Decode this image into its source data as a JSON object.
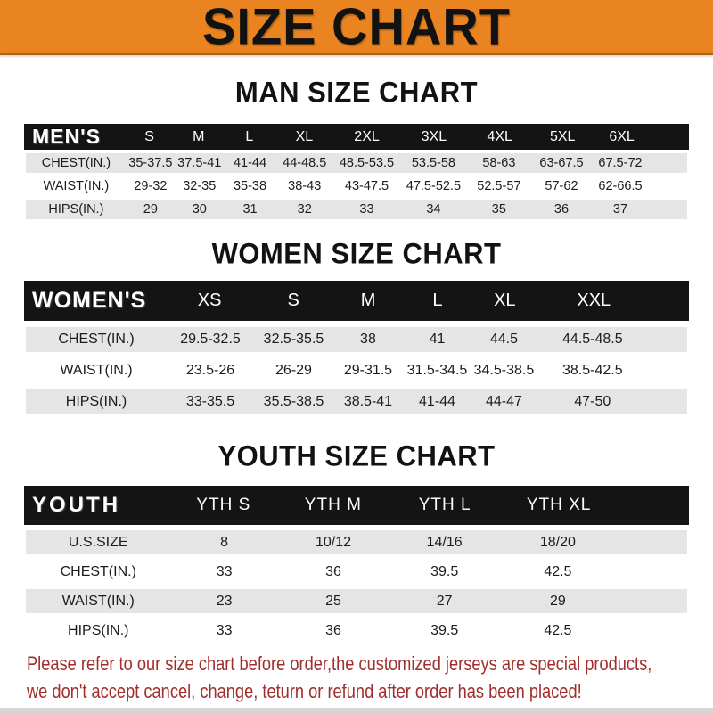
{
  "banner": {
    "title": "SIZE CHART",
    "bg_color": "#E98420",
    "text_color": "#121212"
  },
  "sections": [
    {
      "heading": "MAN SIZE CHART",
      "table": {
        "header_label": "MEN'S",
        "columns": [
          "S",
          "M",
          "L",
          "XL",
          "2XL",
          "3XL",
          "4XL",
          "5XL",
          "6XL"
        ],
        "rows": [
          {
            "label": "CHEST(IN.)",
            "values": [
              "35-37.5",
              "37.5-41",
              "41-44",
              "44-48.5",
              "48.5-53.5",
              "53.5-58",
              "58-63",
              "63-67.5",
              "67.5-72"
            ]
          },
          {
            "label": "WAIST(IN.)",
            "values": [
              "29-32",
              "32-35",
              "35-38",
              "38-43",
              "43-47.5",
              "47.5-52.5",
              "52.5-57",
              "57-62",
              "62-66.5"
            ]
          },
          {
            "label": "HIPS(IN.)",
            "values": [
              "29",
              "30",
              "31",
              "32",
              "33",
              "34",
              "35",
              "36",
              "37"
            ]
          }
        ]
      }
    },
    {
      "heading": "WOMEN SIZE CHART",
      "table": {
        "header_label": "WOMEN'S",
        "columns": [
          "XS",
          "S",
          "M",
          "L",
          "XL",
          "XXL"
        ],
        "rows": [
          {
            "label": "CHEST(IN.)",
            "values": [
              "29.5-32.5",
              "32.5-35.5",
              "38",
              "41",
              "44.5",
              "44.5-48.5"
            ]
          },
          {
            "label": "WAIST(IN.)",
            "values": [
              "23.5-26",
              "26-29",
              "29-31.5",
              "31.5-34.5",
              "34.5-38.5",
              "38.5-42.5"
            ]
          },
          {
            "label": "HIPS(IN.)",
            "values": [
              "33-35.5",
              "35.5-38.5",
              "38.5-41",
              "41-44",
              "44-47",
              "47-50"
            ]
          }
        ]
      }
    },
    {
      "heading": "YOUTH SIZE CHART",
      "table": {
        "header_label": "YOUTH",
        "columns": [
          "YTH S",
          "YTH M",
          "YTH L",
          "YTH XL"
        ],
        "rows": [
          {
            "label": "U.S.SIZE",
            "values": [
              "8",
              "10/12",
              "14/16",
              "18/20"
            ]
          },
          {
            "label": "CHEST(IN.)",
            "values": [
              "33",
              "36",
              "39.5",
              "42.5"
            ]
          },
          {
            "label": "WAIST(IN.)",
            "values": [
              "23",
              "25",
              "27",
              "29"
            ]
          },
          {
            "label": "HIPS(IN.)",
            "values": [
              "33",
              "36",
              "39.5",
              "42.5"
            ]
          }
        ]
      }
    }
  ],
  "footer": {
    "lines": [
      "Please refer to our size chart before order,the customized jerseys are special products,",
      "we don't accept cancel, change, teturn or refund after order has been placed!"
    ],
    "text_color": "#A02F2C"
  }
}
